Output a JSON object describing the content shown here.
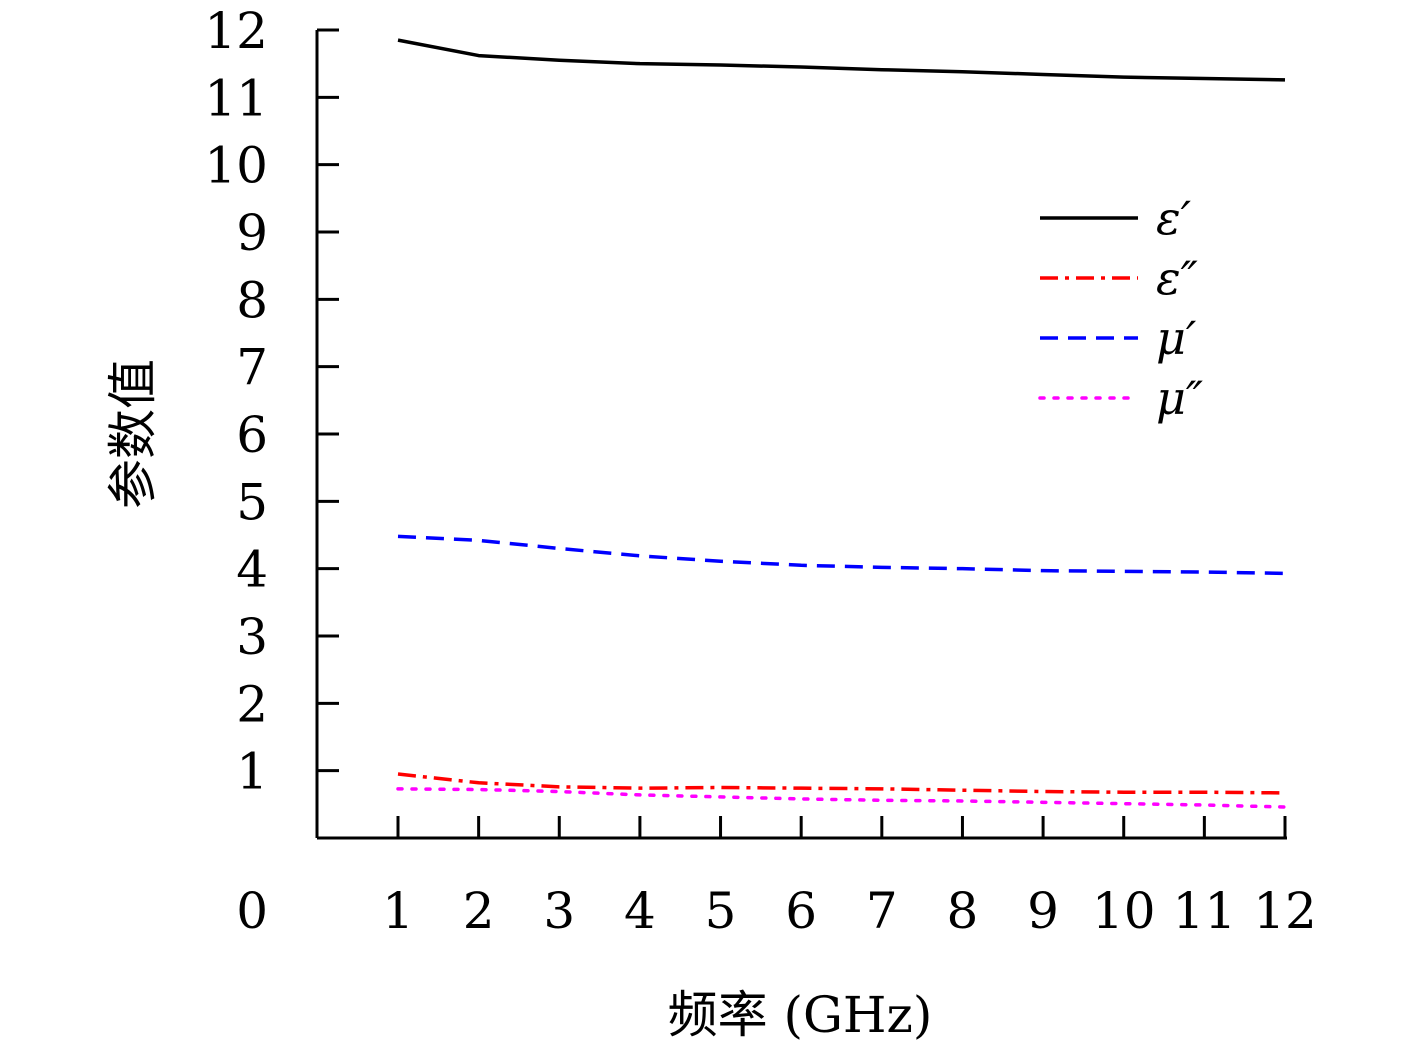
{
  "chart_data": {
    "type": "line",
    "title": "",
    "xlabel": "频率 (GHz)",
    "ylabel": "参数值",
    "x": [
      1,
      2,
      3,
      4,
      5,
      6,
      7,
      8,
      9,
      10,
      11,
      12
    ],
    "xlim": [
      0,
      12
    ],
    "ylim": [
      0,
      12
    ],
    "x_ticks": [
      1,
      2,
      3,
      4,
      5,
      6,
      7,
      8,
      9,
      10,
      11,
      12
    ],
    "y_ticks": [
      0,
      1,
      2,
      3,
      4,
      5,
      6,
      7,
      8,
      9,
      10,
      11,
      12
    ],
    "grid": false,
    "legend_position": "top-right",
    "series": [
      {
        "name": "ε′",
        "color": "#000000",
        "dash": "solid",
        "values": [
          11.85,
          11.62,
          11.55,
          11.5,
          11.48,
          11.45,
          11.41,
          11.38,
          11.34,
          11.3,
          11.28,
          11.26
        ]
      },
      {
        "name": "ε″",
        "color": "#ff0000",
        "dash": "dashdot",
        "values": [
          0.95,
          0.82,
          0.76,
          0.74,
          0.75,
          0.74,
          0.73,
          0.71,
          0.69,
          0.68,
          0.68,
          0.67
        ]
      },
      {
        "name": "μ′",
        "color": "#0000ff",
        "dash": "dashed",
        "values": [
          4.48,
          4.42,
          4.3,
          4.19,
          4.11,
          4.05,
          4.02,
          4.0,
          3.97,
          3.96,
          3.95,
          3.93
        ]
      },
      {
        "name": "μ″",
        "color": "#ff00ff",
        "dash": "dotted",
        "values": [
          0.73,
          0.72,
          0.69,
          0.64,
          0.61,
          0.58,
          0.56,
          0.55,
          0.53,
          0.51,
          0.49,
          0.46
        ]
      }
    ]
  }
}
